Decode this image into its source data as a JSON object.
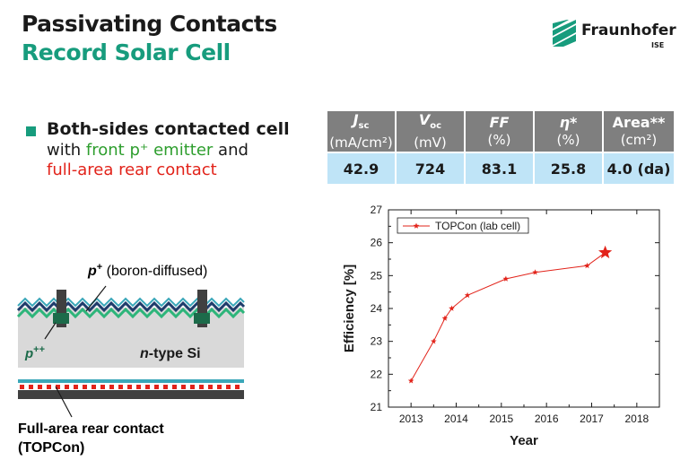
{
  "header": {
    "title": "Passivating Contacts",
    "subtitle": "Record Solar Cell",
    "logo_name": "Fraunhofer",
    "logo_sub": "ISE"
  },
  "bullet": {
    "line1": "Both-sides contacted cell",
    "line2_prefix": "with ",
    "line2_highlight": "front p⁺ emitter",
    "line2_suffix": " and",
    "line3": "full-area rear contact"
  },
  "results_table": {
    "headers": [
      {
        "sym": "J",
        "sub": "sc",
        "unit": "(mA/cm²)"
      },
      {
        "sym": "V",
        "sub": "oc",
        "unit": "(mV)"
      },
      {
        "sym": "FF",
        "sub": "",
        "unit": "(%)"
      },
      {
        "sym": "η*",
        "sub": "",
        "unit": "(%)"
      },
      {
        "sym": "Area**",
        "sub": "",
        "unit": "(cm²)"
      }
    ],
    "values": [
      "42.9",
      "724",
      "83.1",
      "25.8",
      "4.0 (da)"
    ]
  },
  "diagram": {
    "p_label_sym": "p",
    "p_label_sup": "+",
    "p_label_text": " (boron-diffused)",
    "ppp_sym": "p",
    "ppp_sup": "++",
    "ntype_sym": "n",
    "ntype_text": "-type Si",
    "rear_label_1": "Full-area rear contact",
    "rear_label_2": "(TOPCon)"
  },
  "chart_data": {
    "type": "line",
    "xlabel": "Year",
    "ylabel": "Efficiency [%]",
    "xlim": [
      2012.5,
      2018.5
    ],
    "ylim": [
      21,
      27
    ],
    "x_ticks": [
      2013,
      2014,
      2015,
      2016,
      2017,
      2018
    ],
    "y_ticks": [
      21,
      22,
      23,
      24,
      25,
      26,
      27
    ],
    "legend_position": "top-left",
    "series": [
      {
        "name": "TOPCon (lab cell)",
        "color": "#e2231a",
        "x": [
          2013.0,
          2013.5,
          2013.75,
          2013.9,
          2014.25,
          2015.1,
          2015.75,
          2016.9,
          2017.3
        ],
        "y": [
          21.8,
          23.0,
          23.7,
          24.0,
          24.4,
          24.9,
          25.1,
          25.3,
          25.7
        ]
      }
    ]
  }
}
